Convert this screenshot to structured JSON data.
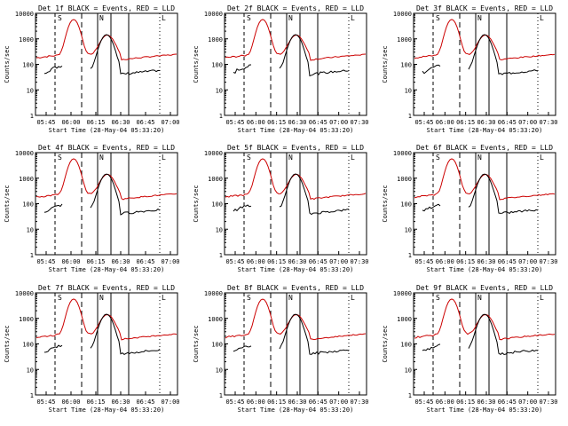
{
  "figure": {
    "background": "#ffffff",
    "colors": {
      "black_series": "#000000",
      "red_series": "#cc0000",
      "axis": "#000000"
    }
  },
  "axes_common": {
    "ylabel": "Counts/sec",
    "xlabel": "Start Time (28-May-04 05:33:20)",
    "ytick_labels": [
      "1",
      "10",
      "100",
      "1000",
      "10000"
    ],
    "xtick_labels_a": [
      "05:45",
      "06:00",
      "06:15",
      "06:30",
      "06:45",
      "07:00"
    ],
    "xtick_labels_b": [
      "05:45",
      "06:00",
      "06:15",
      "06:30",
      "06:45",
      "07:00",
      "07:30"
    ],
    "markers": [
      "S",
      "N",
      "L"
    ]
  },
  "chart_data": [
    {
      "type": "line",
      "title": "Det 1f BLACK = Events, RED = LLD",
      "ylim": [
        1,
        10000
      ],
      "log_y": true,
      "series": [
        {
          "name": "BLACK = Events",
          "color": "#000000"
        },
        {
          "name": "RED = LLD",
          "color": "#cc0000"
        }
      ]
    },
    {
      "type": "line",
      "title": "Det 2f BLACK = Events, RED = LLD",
      "ylim": [
        1,
        10000
      ],
      "log_y": true,
      "series": [
        {
          "name": "BLACK = Events",
          "color": "#000000"
        },
        {
          "name": "RED = LLD",
          "color": "#cc0000"
        }
      ]
    },
    {
      "type": "line",
      "title": "Det 3f BLACK = Events, RED = LLD",
      "ylim": [
        1,
        10000
      ],
      "log_y": true,
      "series": [
        {
          "name": "BLACK = Events",
          "color": "#000000"
        },
        {
          "name": "RED = LLD",
          "color": "#cc0000"
        }
      ]
    },
    {
      "type": "line",
      "title": "Det 4f BLACK = Events, RED = LLD",
      "ylim": [
        1,
        10000
      ],
      "log_y": true,
      "series": [
        {
          "name": "BLACK = Events",
          "color": "#000000"
        },
        {
          "name": "RED = LLD",
          "color": "#cc0000"
        }
      ]
    },
    {
      "type": "line",
      "title": "Det 5f BLACK = Events, RED = LLD",
      "ylim": [
        1,
        10000
      ],
      "log_y": true,
      "series": [
        {
          "name": "BLACK = Events",
          "color": "#000000"
        },
        {
          "name": "RED = LLD",
          "color": "#cc0000"
        }
      ]
    },
    {
      "type": "line",
      "title": "Det 6f BLACK = Events, RED = LLD",
      "ylim": [
        1,
        10000
      ],
      "log_y": true,
      "series": [
        {
          "name": "BLACK = Events",
          "color": "#000000"
        },
        {
          "name": "RED = LLD",
          "color": "#cc0000"
        }
      ]
    },
    {
      "type": "line",
      "title": "Det 7f BLACK = Events, RED = LLD",
      "ylim": [
        1,
        10000
      ],
      "log_y": true,
      "series": [
        {
          "name": "BLACK = Events",
          "color": "#000000"
        },
        {
          "name": "RED = LLD",
          "color": "#cc0000"
        }
      ]
    },
    {
      "type": "line",
      "title": "Det 8f BLACK = Events, RED = LLD",
      "ylim": [
        1,
        10000
      ],
      "log_y": true,
      "series": [
        {
          "name": "BLACK = Events",
          "color": "#000000"
        },
        {
          "name": "RED = LLD",
          "color": "#cc0000"
        }
      ]
    },
    {
      "type": "line",
      "title": "Det 9f BLACK = Events, RED = LLD",
      "ylim": [
        1,
        10000
      ],
      "log_y": true,
      "series": [
        {
          "name": "BLACK = Events",
          "color": "#000000"
        },
        {
          "name": "RED = LLD",
          "color": "#cc0000"
        }
      ]
    }
  ]
}
